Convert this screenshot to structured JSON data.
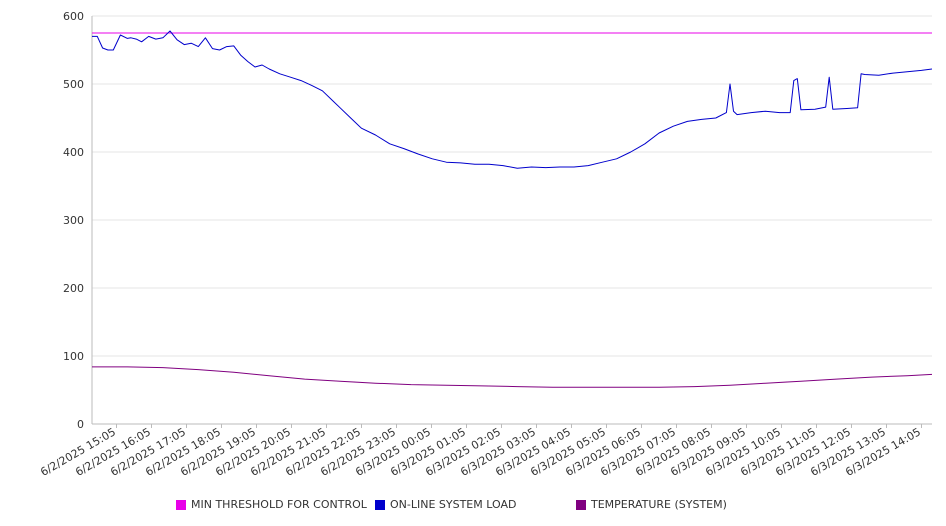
{
  "chart_data": {
    "type": "line",
    "title": "",
    "xlabel": "",
    "ylabel": "",
    "ylim": [
      0,
      600
    ],
    "yticks": [
      0,
      100,
      200,
      300,
      400,
      500,
      600
    ],
    "grid": true,
    "legend_position": "bottom",
    "x_tick_labels": [
      "6/2/2025 15:05",
      "6/2/2025 16:05",
      "6/2/2025 17:05",
      "6/2/2025 18:05",
      "6/2/2025 19:05",
      "6/2/2025 20:05",
      "6/2/2025 21:05",
      "6/2/2025 22:05",
      "6/2/2025 23:05",
      "6/3/2025 00:05",
      "6/3/2025 01:05",
      "6/3/2025 02:05",
      "6/3/2025 03:05",
      "6/3/2025 04:05",
      "6/3/2025 05:05",
      "6/3/2025 06:05",
      "6/3/2025 07:05",
      "6/3/2025 08:05",
      "6/3/2025 09:05",
      "6/3/2025 10:05",
      "6/3/2025 11:05",
      "6/3/2025 12:05",
      "6/3/2025 13:05",
      "6/3/2025 14:05"
    ],
    "series": [
      {
        "name": "MIN THRESHOLD FOR CONTROL",
        "color": "#e800e8",
        "x_hours": [
          0,
          23.7
        ],
        "values": [
          575,
          575
        ]
      },
      {
        "name": "ON-LINE SYSTEM LOAD",
        "color": "#0000cc",
        "x_hours": [
          0,
          0.15,
          0.3,
          0.45,
          0.6,
          0.8,
          1,
          1.1,
          1.25,
          1.4,
          1.6,
          1.8,
          2,
          2.2,
          2.4,
          2.6,
          2.8,
          3,
          3.2,
          3.4,
          3.6,
          3.8,
          4,
          4.2,
          4.4,
          4.6,
          4.8,
          5,
          5.3,
          5.6,
          5.9,
          6.2,
          6.5,
          6.8,
          7,
          7.3,
          7.6,
          8,
          8.4,
          8.8,
          9.2,
          9.6,
          10,
          10.4,
          10.8,
          11.2,
          11.6,
          12,
          12.4,
          12.8,
          13.2,
          13.6,
          14,
          14.4,
          14.8,
          15.2,
          15.6,
          16,
          16.4,
          16.8,
          17.2,
          17.6,
          17.9,
          18,
          18.1,
          18.2,
          18.6,
          19,
          19.4,
          19.7,
          19.8,
          19.9,
          20,
          20.4,
          20.7,
          20.8,
          20.9,
          21.3,
          21.6,
          21.7,
          21.8,
          22.2,
          22.6,
          23,
          23.4,
          23.7
        ],
        "values": [
          570,
          570,
          553,
          550,
          550,
          572,
          567,
          568,
          566,
          562,
          570,
          566,
          568,
          578,
          565,
          558,
          560,
          555,
          568,
          552,
          550,
          555,
          556,
          542,
          533,
          525,
          528,
          522,
          515,
          510,
          505,
          498,
          490,
          475,
          465,
          450,
          435,
          425,
          412,
          405,
          397,
          390,
          385,
          384,
          382,
          382,
          380,
          376,
          378,
          377,
          378,
          378,
          380,
          385,
          390,
          400,
          412,
          428,
          438,
          445,
          448,
          450,
          458,
          500,
          460,
          455,
          458,
          460,
          458,
          458,
          505,
          508,
          462,
          463,
          466,
          510,
          463,
          464,
          465,
          515,
          514,
          513,
          516,
          518,
          520,
          522
        ]
      },
      {
        "name": "TEMPERATURE (SYSTEM)",
        "color": "#800080",
        "x_hours": [
          0,
          1,
          2,
          3,
          4,
          5,
          6,
          7,
          8,
          9,
          10,
          11,
          12,
          13,
          14,
          15,
          16,
          17,
          18,
          19,
          20,
          21,
          22,
          23,
          23.7
        ],
        "values": [
          84,
          84,
          83,
          80,
          76,
          71,
          66,
          63,
          60,
          58,
          57,
          56,
          55,
          54,
          54,
          54,
          54,
          55,
          57,
          60,
          63,
          66,
          69,
          71,
          73
        ]
      }
    ]
  }
}
